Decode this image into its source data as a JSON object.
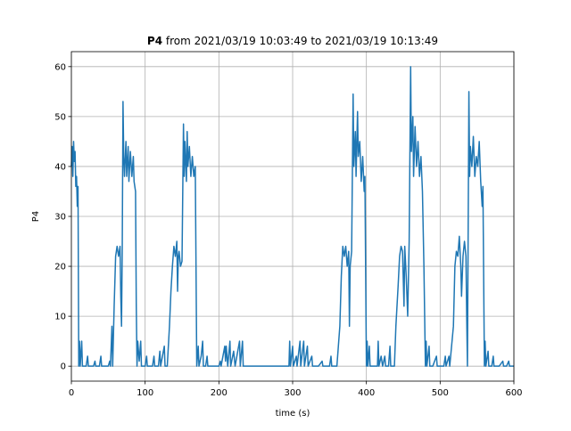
{
  "chart_data": {
    "type": "line",
    "title_bold": "P4",
    "title": "from 2021/03/19 10:03:49 to 2021/03/19 10:13:49",
    "x_label": "time (s)",
    "y_label": "P4",
    "xlim": [
      0,
      600
    ],
    "ylim": [
      -3,
      63
    ],
    "xticks": [
      0,
      100,
      200,
      300,
      400,
      500,
      600
    ],
    "yticks": [
      0,
      10,
      20,
      30,
      40,
      50,
      60
    ],
    "grid": true,
    "x": [
      0,
      1,
      2,
      3,
      4,
      5,
      6,
      7,
      8,
      9,
      10,
      11,
      12,
      14,
      15,
      20,
      22,
      23,
      30,
      32,
      33,
      38,
      40,
      41,
      50,
      52,
      53,
      55,
      56,
      58,
      60,
      62,
      64,
      66,
      67,
      68,
      69,
      70,
      71,
      72,
      74,
      75,
      77,
      78,
      80,
      82,
      84,
      85,
      87,
      88,
      89,
      90,
      92,
      94,
      95,
      100,
      102,
      103,
      110,
      112,
      113,
      118,
      120,
      121,
      126,
      127,
      130,
      133,
      135,
      137,
      139,
      141,
      143,
      144,
      145,
      146,
      148,
      150,
      152,
      153,
      154,
      156,
      157,
      158,
      160,
      162,
      164,
      166,
      168,
      170,
      172,
      173,
      176,
      178,
      179,
      182,
      184,
      185,
      190,
      195,
      200,
      202,
      203,
      208,
      209,
      210,
      212,
      215,
      216,
      220,
      222,
      228,
      229,
      232,
      233,
      236,
      295,
      296,
      297,
      300,
      301,
      305,
      306,
      310,
      311,
      315,
      316,
      320,
      321,
      326,
      327,
      330,
      335,
      340,
      341,
      350,
      352,
      353,
      360,
      362,
      364,
      366,
      368,
      370,
      372,
      374,
      376,
      377,
      378,
      380,
      382,
      383,
      385,
      386,
      388,
      389,
      391,
      393,
      395,
      397,
      398,
      400,
      401,
      402,
      404,
      405,
      410,
      415,
      416,
      417,
      420,
      422,
      425,
      426,
      430,
      432,
      433,
      438,
      440,
      443,
      445,
      447,
      449,
      451,
      452,
      454,
      456,
      458,
      460,
      461,
      463,
      464,
      466,
      468,
      470,
      472,
      474,
      476,
      478,
      480,
      481,
      482,
      485,
      486,
      490,
      495,
      496,
      505,
      507,
      508,
      512,
      513,
      518,
      520,
      522,
      524,
      526,
      528,
      529,
      531,
      533,
      535,
      536,
      537,
      539,
      540,
      541,
      543,
      545,
      547,
      549,
      551,
      553,
      555,
      557,
      558,
      560,
      561,
      562,
      565,
      566,
      570,
      572,
      573,
      580,
      585,
      586,
      590,
      593,
      594,
      600
    ],
    "series": [
      {
        "name": "P4",
        "color": "#1f77b4",
        "values": [
          40,
          44,
          38,
          45,
          41,
          43,
          36,
          38,
          32,
          36,
          0,
          5,
          0,
          5,
          0,
          0,
          2,
          0,
          0,
          1,
          0,
          0,
          2,
          0,
          0,
          1,
          0,
          8,
          0,
          12,
          22,
          24,
          22,
          24,
          14,
          8,
          24,
          53,
          42,
          38,
          45,
          38,
          44,
          37,
          43,
          38,
          42,
          37,
          35,
          12,
          0,
          5,
          1,
          5,
          0,
          0,
          2,
          0,
          0,
          2,
          0,
          0,
          3,
          0,
          4,
          0,
          0,
          8,
          15,
          20,
          24,
          22,
          25,
          15,
          22,
          23,
          20,
          21,
          48.5,
          38,
          45,
          37,
          47,
          40,
          44,
          38,
          42,
          38,
          40,
          0,
          4,
          0,
          2,
          5,
          0,
          0,
          2,
          0,
          0,
          0,
          0,
          1,
          0,
          4,
          1,
          4,
          0,
          5,
          0,
          3,
          0,
          5,
          0,
          5,
          0,
          0,
          0,
          5,
          0,
          4,
          0,
          2,
          0,
          5,
          0,
          5,
          0,
          4,
          0,
          2,
          0,
          0,
          0,
          1,
          0,
          0,
          2,
          0,
          0,
          4,
          8,
          18,
          24,
          22,
          24,
          20,
          23,
          8,
          20,
          23,
          54.5,
          40,
          47,
          38,
          51,
          42,
          45,
          37,
          42,
          35,
          38,
          0,
          5,
          0,
          4,
          0,
          0,
          0,
          5,
          0,
          2,
          0,
          2,
          0,
          0,
          4,
          0,
          0,
          8,
          16,
          22,
          24,
          23,
          12,
          24,
          18,
          10,
          25,
          60,
          43,
          50,
          38,
          48,
          40,
          45,
          38,
          42,
          35,
          20,
          0,
          5,
          0,
          4,
          0,
          0,
          2,
          0,
          0,
          2,
          0,
          2,
          0,
          8,
          20,
          23,
          22,
          26,
          20,
          14,
          22,
          25,
          22,
          10,
          0,
          55,
          38,
          44,
          40,
          46,
          38,
          42,
          40,
          45,
          37,
          32,
          36,
          0,
          5,
          0,
          3,
          0,
          0,
          2,
          0,
          0,
          1,
          0,
          0,
          1,
          0,
          0
        ]
      }
    ]
  }
}
